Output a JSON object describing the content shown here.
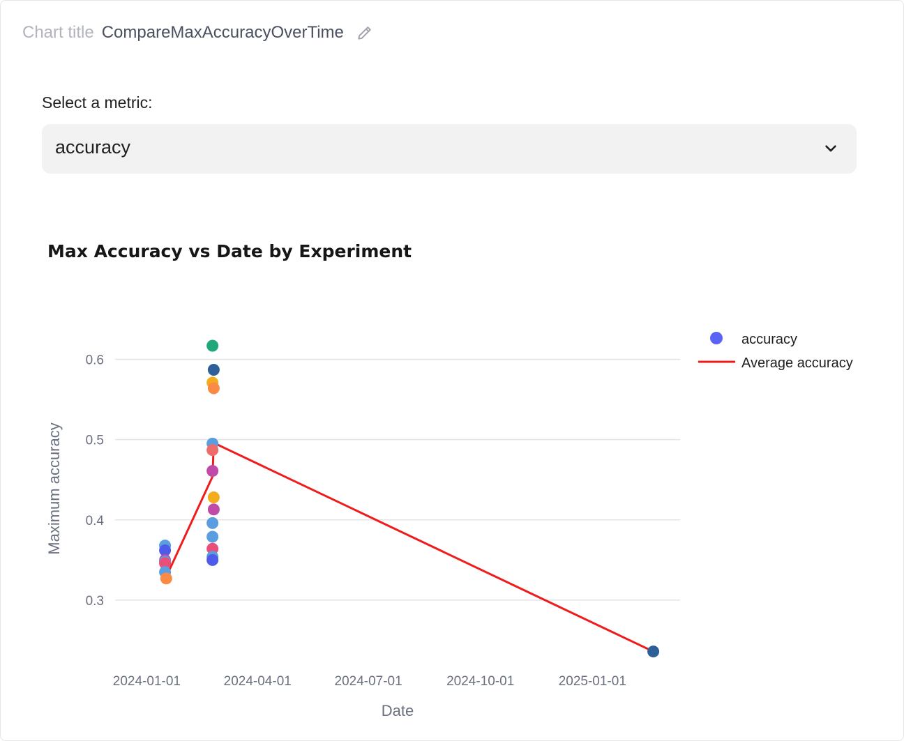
{
  "header": {
    "title_label": "Chart title",
    "title_value": "CompareMaxAccuracyOverTime",
    "edit_icon": "pencil-icon"
  },
  "metric_select": {
    "label": "Select a metric:",
    "value": "accuracy",
    "icon": "chevron-down-icon"
  },
  "chart_data": {
    "type": "scatter",
    "title": "Max Accuracy vs Date by Experiment",
    "xlabel": "Date",
    "ylabel": "Maximum accuracy",
    "x_ticks": [
      "2024-01-01",
      "2024-04-01",
      "2024-07-01",
      "2024-10-01",
      "2025-01-01"
    ],
    "y_ticks": [
      0.3,
      0.4,
      0.5,
      0.6
    ],
    "xlim": [
      "2023-12-06",
      "2025-03-14"
    ],
    "ylim": [
      0.22,
      0.63
    ],
    "grid": "horizontal",
    "legend_position": "top-right",
    "series": [
      {
        "name": "accuracy",
        "type": "scatter",
        "legend_color": "#5b63f5",
        "points": [
          {
            "x": "2024-01-16",
            "y": 0.368,
            "color": "#5a9ee0"
          },
          {
            "x": "2024-01-16",
            "y": 0.362,
            "color": "#4d5be8"
          },
          {
            "x": "2024-01-16",
            "y": 0.35,
            "color": "#c04aa8"
          },
          {
            "x": "2024-01-16",
            "y": 0.348,
            "color": "#5a9ee0"
          },
          {
            "x": "2024-01-16",
            "y": 0.346,
            "color": "#e94f7a"
          },
          {
            "x": "2024-01-16",
            "y": 0.335,
            "color": "#5a9ee0"
          },
          {
            "x": "2024-01-17",
            "y": 0.327,
            "color": "#f98b47"
          },
          {
            "x": "2024-02-24",
            "y": 0.617,
            "color": "#22a77c"
          },
          {
            "x": "2024-02-25",
            "y": 0.587,
            "color": "#2f5f98"
          },
          {
            "x": "2024-02-24",
            "y": 0.571,
            "color": "#f3ad1c"
          },
          {
            "x": "2024-02-25",
            "y": 0.564,
            "color": "#f98b47"
          },
          {
            "x": "2024-02-24",
            "y": 0.495,
            "color": "#5a9ee0"
          },
          {
            "x": "2024-02-24",
            "y": 0.487,
            "color": "#ee6c6c"
          },
          {
            "x": "2024-02-24",
            "y": 0.461,
            "color": "#c04aa8"
          },
          {
            "x": "2024-02-25",
            "y": 0.428,
            "color": "#f3ad1c"
          },
          {
            "x": "2024-02-25",
            "y": 0.413,
            "color": "#c04aa8"
          },
          {
            "x": "2024-02-24",
            "y": 0.396,
            "color": "#5a9ee0"
          },
          {
            "x": "2024-02-24",
            "y": 0.379,
            "color": "#5a9ee0"
          },
          {
            "x": "2024-02-24",
            "y": 0.364,
            "color": "#e94f7a"
          },
          {
            "x": "2024-02-24",
            "y": 0.354,
            "color": "#5a9ee0"
          },
          {
            "x": "2024-02-24",
            "y": 0.35,
            "color": "#4d5be8"
          },
          {
            "x": "2025-02-20",
            "y": 0.236,
            "color": "#2f5f98"
          }
        ]
      },
      {
        "name": "Average accuracy",
        "type": "line",
        "color": "#ee1c1c",
        "points": [
          {
            "x": "2024-01-16",
            "y": 0.35
          },
          {
            "x": "2024-01-17",
            "y": 0.329
          },
          {
            "x": "2024-02-24",
            "y": 0.454
          },
          {
            "x": "2024-02-25",
            "y": 0.496
          },
          {
            "x": "2025-02-20",
            "y": 0.236
          }
        ]
      }
    ]
  }
}
